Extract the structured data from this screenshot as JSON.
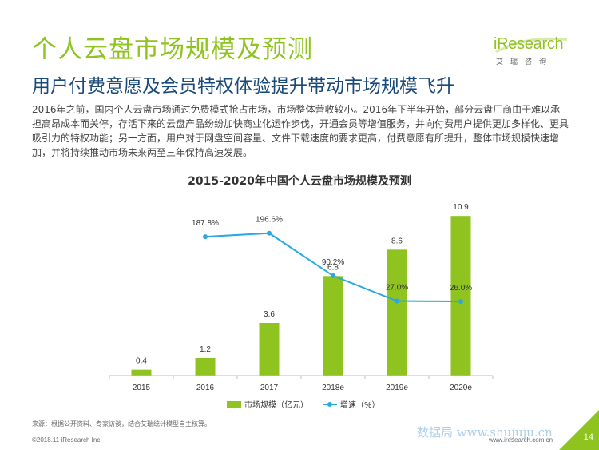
{
  "header": {
    "title": "个人云盘市场规模及预测",
    "subtitle": "用户付费意愿及会员特权体验提升带动市场规模飞升"
  },
  "logo": {
    "main": "iResearch",
    "sub": "艾瑞咨询"
  },
  "body_text": "2016年之前，国内个人云盘市场通过免费模式抢占市场，市场整体营收较小。2016年下半年开始，部分云盘厂商由于难以承担高昂成本而关停，存活下来的云盘产品纷纷加快商业化运作步伐，开通会员等增值服务，并向付费用户提供更加多样化、更具吸引力的特权功能；另一方面，用户对于网盘空间容量、文件下载速度的要求更高，付费意愿有所提升，整体市场规模快速增加，并将持续推动市场未来两至三年保持高速发展。",
  "chart_data": {
    "type": "bar",
    "title": "2015-2020年中国个人云盘市场规模及预测",
    "categories": [
      "2015",
      "2016",
      "2017",
      "2018e",
      "2019e",
      "2020e"
    ],
    "series": [
      {
        "name": "市场规模（亿元）",
        "type": "bar",
        "color": "#8fc31f",
        "values": [
          0.4,
          1.2,
          3.6,
          6.8,
          8.6,
          10.9
        ],
        "labels": [
          "0.4",
          "1.2",
          "3.6",
          "6.8",
          "8.6",
          "10.9"
        ]
      },
      {
        "name": "增速（%）",
        "type": "line",
        "color": "#2aa8e0",
        "values": [
          null,
          187.8,
          196.6,
          90.2,
          27.0,
          26.0
        ],
        "labels": [
          "",
          "187.8%",
          "196.6%",
          "90.2%",
          "27.0%",
          "26.0%"
        ]
      }
    ],
    "bar_ylim": [
      0,
      12
    ],
    "line_ylim": [
      -160,
      280
    ],
    "legend": "bottom-center"
  },
  "footer": {
    "source": "来源：根据公开资料、专家访谈，结合艾瑞统计模型自主核算。",
    "copyright": "©2018.11 iResearch Inc",
    "site": "www.iresearch.com.cn",
    "page": "14",
    "watermark": "数据局 www.shujuju.cn"
  }
}
